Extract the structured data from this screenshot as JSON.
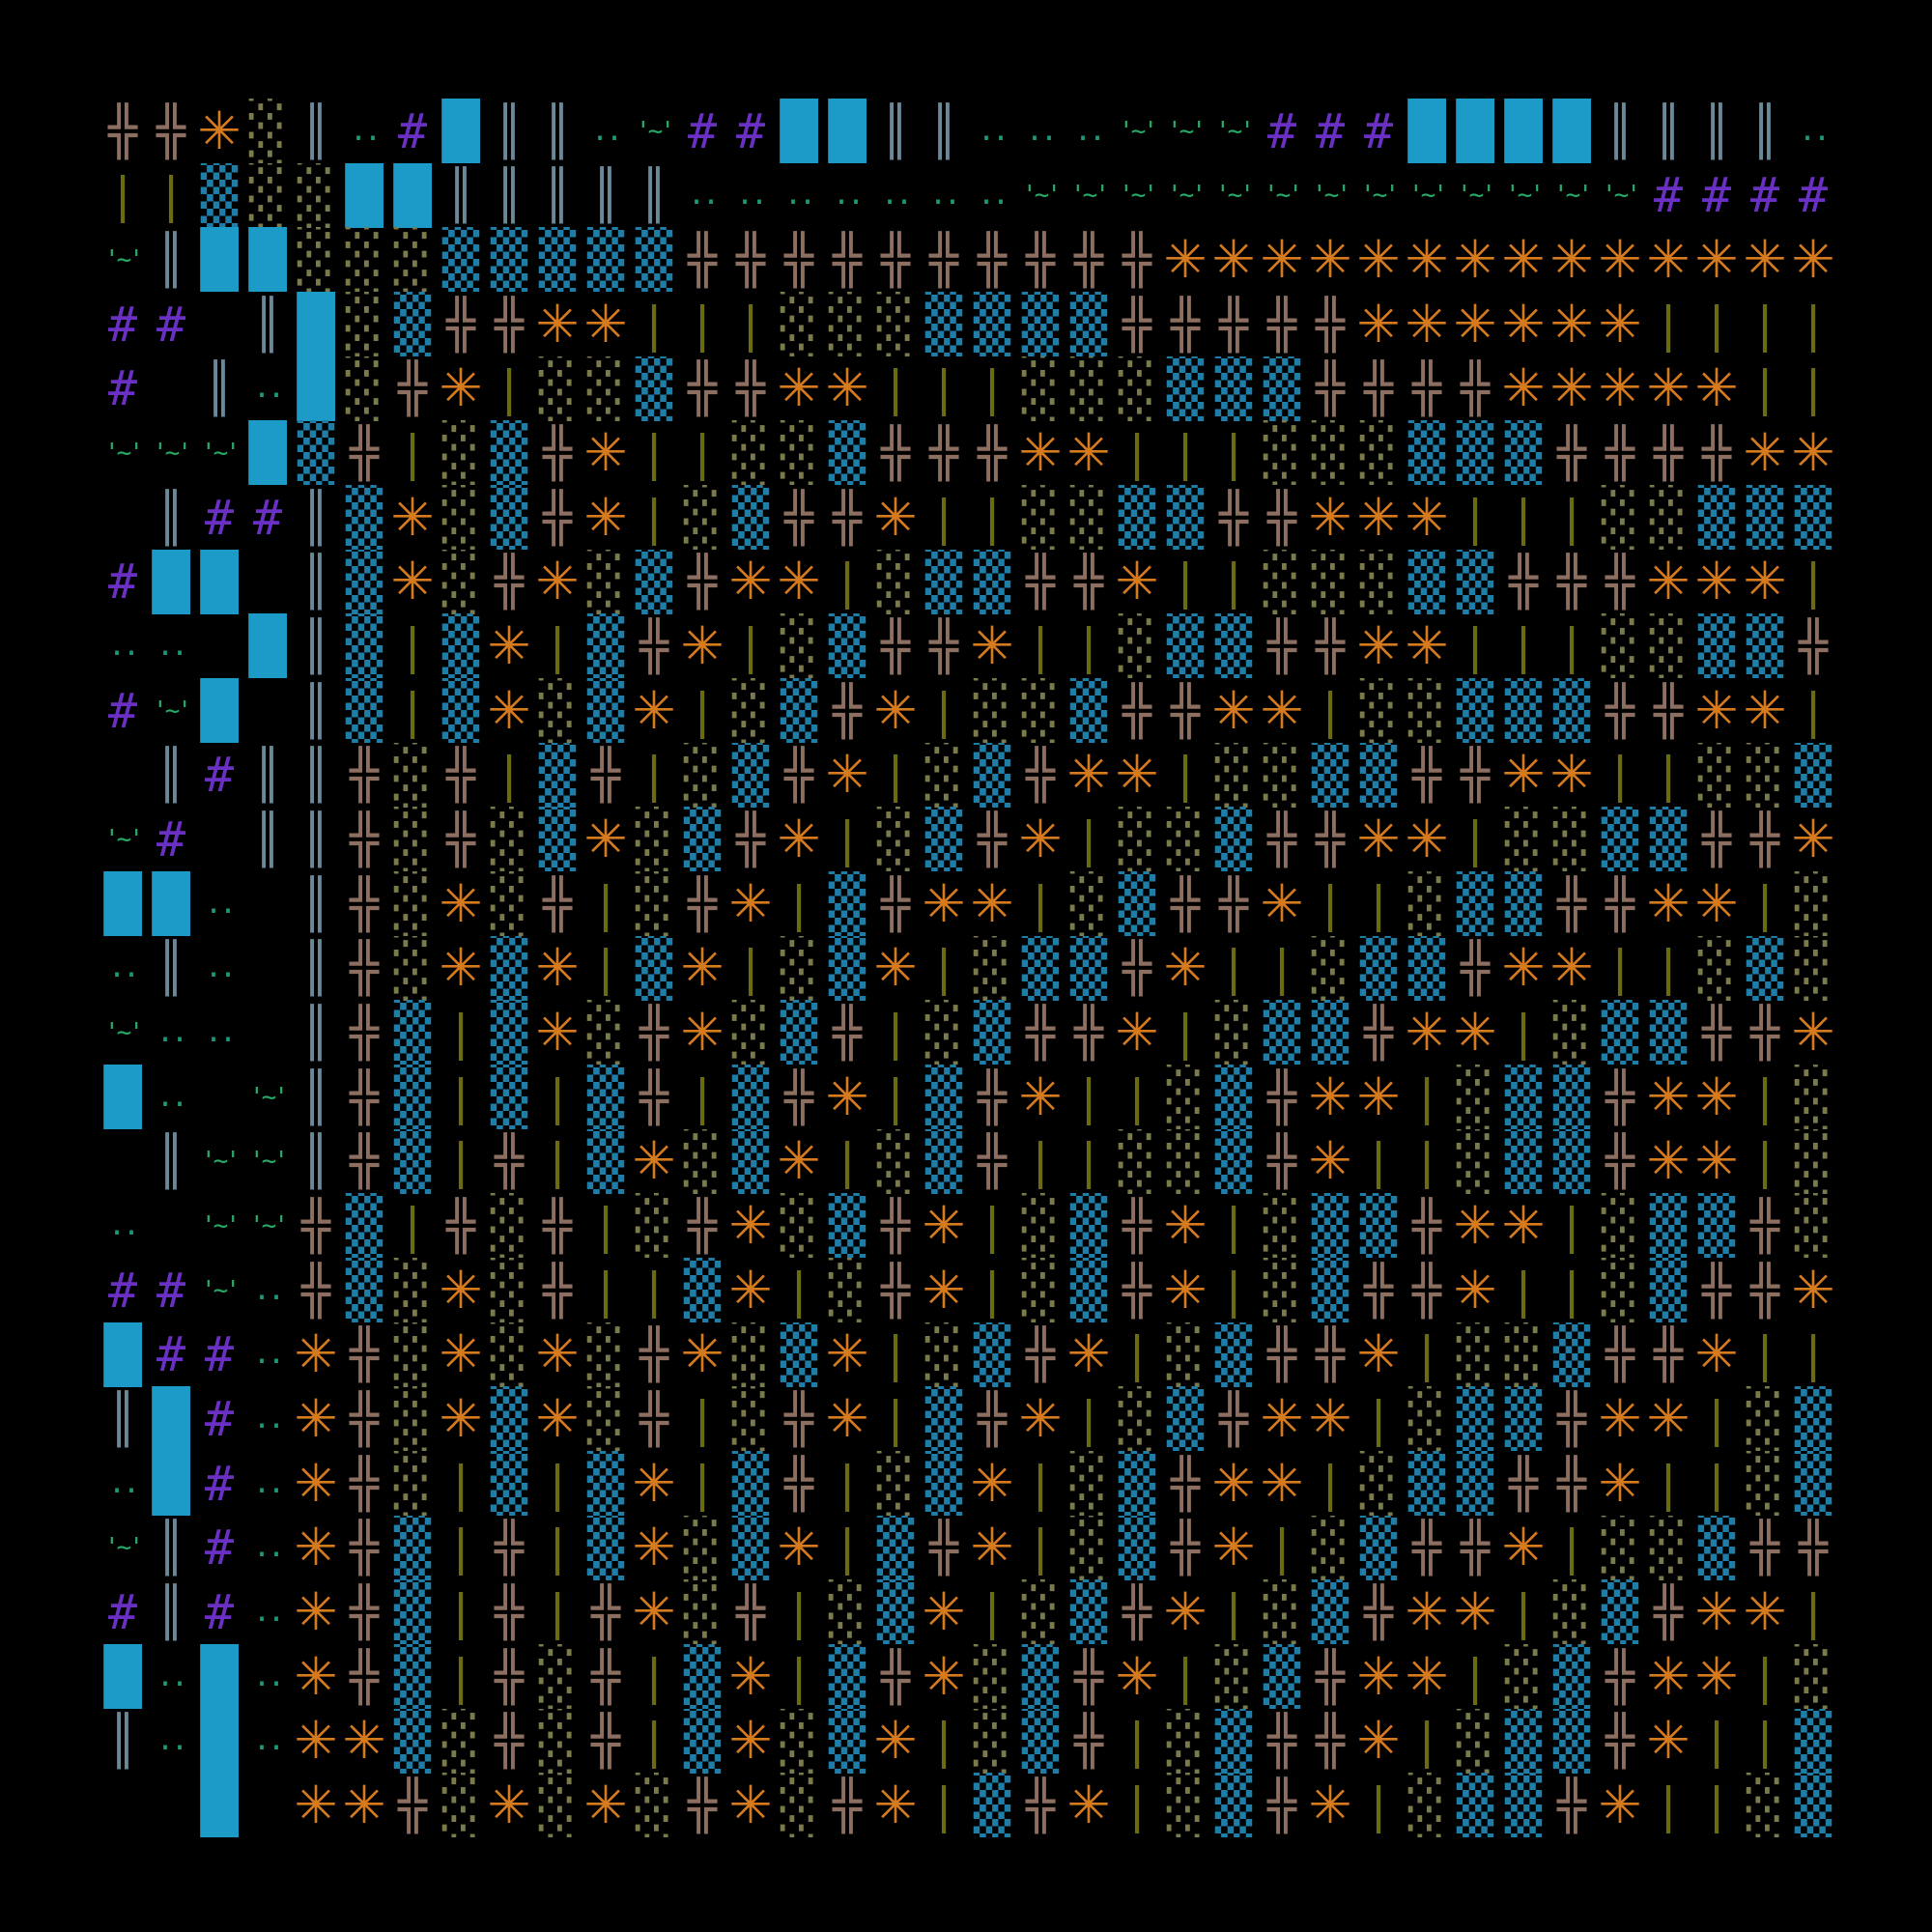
{
  "map": {
    "colors": {
      "╬": "#8c6f60",
      "✳": "#d67a1e",
      "░": "#7a7a4a",
      "▒": "#1e7ea8",
      "█": "#1c9bc8",
      "║": "#6a8898",
      "|": "#6b6b12",
      "..": "#1a9a7a",
      "'~'": "#2aaa68",
      "#": "#6a30c4"
    },
    "rows": [
      [
        "╬",
        "╬",
        "✳",
        "░",
        "║",
        "..",
        "#",
        "█",
        "║",
        "║",
        "..",
        "'~'",
        "#",
        "#",
        "█",
        "█",
        "║",
        "║",
        "..",
        "..",
        "..",
        "'~'",
        "'~'",
        "'~'",
        "#",
        "#",
        "#",
        "█",
        "█",
        "█",
        "█",
        "║",
        "║",
        "║",
        "║",
        ".."
      ],
      [
        "|",
        "|",
        "▒",
        "░",
        "░",
        "█",
        "█",
        "║",
        "║",
        "║",
        "║",
        "║",
        "..",
        "..",
        "..",
        "..",
        "..",
        "..",
        "..",
        "'~'",
        "'~'",
        "'~'",
        "'~'",
        "'~'",
        "'~'",
        "'~'",
        "'~'",
        "'~'",
        "'~'",
        "'~'",
        "'~'",
        "'~'",
        "#",
        "#",
        "#",
        "#"
      ],
      [
        "'~'",
        "║",
        "█",
        "█",
        "░",
        "░",
        "░",
        "▒",
        "▒",
        "▒",
        "▒",
        "▒",
        "╬",
        "╬",
        "╬",
        "╬",
        "╬",
        "╬",
        "╬",
        "╬",
        "╬",
        "╬",
        "✳",
        "✳",
        "✳",
        "✳",
        "✳",
        "✳",
        "✳",
        "✳",
        "✳",
        "✳",
        "✳",
        "✳",
        "✳",
        "✳"
      ],
      [
        "#",
        "#",
        null,
        "║",
        "█",
        "░",
        "▒",
        "╬",
        "╬",
        "✳",
        "✳",
        "|",
        "|",
        "|",
        "░",
        "░",
        "░",
        "▒",
        "▒",
        "▒",
        "▒",
        "╬",
        "╬",
        "╬",
        "╬",
        "╬",
        "✳",
        "✳",
        "✳",
        "✳",
        "✳",
        "✳",
        "|",
        "|",
        "|",
        "|"
      ],
      [
        "#",
        null,
        "║",
        "..",
        "█",
        "░",
        "╬",
        "✳",
        "|",
        "░",
        "░",
        "▒",
        "╬",
        "╬",
        "✳",
        "✳",
        "|",
        "|",
        "|",
        "░",
        "░",
        "░",
        "▒",
        "▒",
        "▒",
        "╬",
        "╬",
        "╬",
        "╬",
        "✳",
        "✳",
        "✳",
        "✳",
        "✳",
        "|",
        "|"
      ],
      [
        "'~'",
        "'~'",
        "'~'",
        "█",
        "▒",
        "╬",
        "|",
        "░",
        "▒",
        "╬",
        "✳",
        "|",
        "|",
        "░",
        "░",
        "▒",
        "╬",
        "╬",
        "╬",
        "✳",
        "✳",
        "|",
        "|",
        "|",
        "░",
        "░",
        "░",
        "▒",
        "▒",
        "▒",
        "╬",
        "╬",
        "╬",
        "╬",
        "✳",
        "✳"
      ],
      [
        null,
        "║",
        "#",
        "#",
        "║",
        "▒",
        "✳",
        "░",
        "▒",
        "╬",
        "✳",
        "|",
        "░",
        "▒",
        "╬",
        "╬",
        "✳",
        "|",
        "|",
        "░",
        "░",
        "▒",
        "▒",
        "╬",
        "╬",
        "✳",
        "✳",
        "✳",
        "|",
        "|",
        "|",
        "░",
        "░",
        "▒",
        "▒",
        "▒"
      ],
      [
        "#",
        "█",
        "█",
        null,
        "║",
        "▒",
        "✳",
        "░",
        "╬",
        "✳",
        "░",
        "▒",
        "╬",
        "✳",
        "✳",
        "|",
        "░",
        "▒",
        "▒",
        "╬",
        "╬",
        "✳",
        "|",
        "|",
        "░",
        "░",
        "░",
        "▒",
        "▒",
        "╬",
        "╬",
        "╬",
        "✳",
        "✳",
        "✳",
        "|"
      ],
      [
        "..",
        "..",
        null,
        "█",
        "║",
        "▒",
        "|",
        "▒",
        "✳",
        "|",
        "▒",
        "╬",
        "✳",
        "|",
        "░",
        "▒",
        "╬",
        "╬",
        "✳",
        "|",
        "|",
        "░",
        "▒",
        "▒",
        "╬",
        "╬",
        "✳",
        "✳",
        "|",
        "|",
        "|",
        "░",
        "░",
        "▒",
        "▒",
        "╬"
      ],
      [
        "#",
        "'~'",
        "█",
        null,
        "║",
        "▒",
        "|",
        "▒",
        "✳",
        "░",
        "▒",
        "✳",
        "|",
        "░",
        "▒",
        "╬",
        "✳",
        "|",
        "░",
        "░",
        "▒",
        "╬",
        "╬",
        "✳",
        "✳",
        "|",
        "░",
        "░",
        "▒",
        "▒",
        "▒",
        "╬",
        "╬",
        "✳",
        "✳",
        "|"
      ],
      [
        null,
        "║",
        "#",
        "║",
        "║",
        "╬",
        "░",
        "╬",
        "|",
        "▒",
        "╬",
        "|",
        "░",
        "▒",
        "╬",
        "✳",
        "|",
        "░",
        "▒",
        "╬",
        "✳",
        "✳",
        "|",
        "░",
        "░",
        "▒",
        "▒",
        "╬",
        "╬",
        "✳",
        "✳",
        "|",
        "|",
        "░",
        "░",
        "▒"
      ],
      [
        "'~'",
        "#",
        null,
        "║",
        "║",
        "╬",
        "░",
        "╬",
        "░",
        "▒",
        "✳",
        "░",
        "▒",
        "╬",
        "✳",
        "|",
        "░",
        "▒",
        "╬",
        "✳",
        "|",
        "░",
        "░",
        "▒",
        "╬",
        "╬",
        "✳",
        "✳",
        "|",
        "░",
        "░",
        "▒",
        "▒",
        "╬",
        "╬",
        "✳"
      ],
      [
        "█",
        "█",
        "..",
        null,
        "║",
        "╬",
        "░",
        "✳",
        "░",
        "╬",
        "|",
        "░",
        "╬",
        "✳",
        "|",
        "▒",
        "╬",
        "✳",
        "✳",
        "|",
        "░",
        "▒",
        "╬",
        "╬",
        "✳",
        "|",
        "|",
        "░",
        "▒",
        "▒",
        "╬",
        "╬",
        "✳",
        "✳",
        "|",
        "░"
      ],
      [
        "..",
        "║",
        "..",
        null,
        "║",
        "╬",
        "░",
        "✳",
        "▒",
        "✳",
        "|",
        "▒",
        "✳",
        "|",
        "░",
        "▒",
        "✳",
        "|",
        "░",
        "▒",
        "▒",
        "╬",
        "✳",
        "|",
        "|",
        "░",
        "▒",
        "▒",
        "╬",
        "✳",
        "✳",
        "|",
        "|",
        "░",
        "▒",
        "░"
      ],
      [
        "'~'",
        "..",
        "..",
        null,
        "║",
        "╬",
        "▒",
        "|",
        "▒",
        "✳",
        "░",
        "╬",
        "✳",
        "░",
        "▒",
        "╬",
        "|",
        "░",
        "▒",
        "╬",
        "╬",
        "✳",
        "|",
        "░",
        "▒",
        "▒",
        "╬",
        "✳",
        "✳",
        "|",
        "░",
        "▒",
        "▒",
        "╬",
        "╬",
        "✳"
      ],
      [
        "█",
        "..",
        null,
        "'~'",
        "║",
        "╬",
        "▒",
        "|",
        "▒",
        "|",
        "▒",
        "╬",
        "|",
        "▒",
        "╬",
        "✳",
        "|",
        "▒",
        "╬",
        "✳",
        "|",
        "|",
        "░",
        "▒",
        "╬",
        "✳",
        "✳",
        "|",
        "░",
        "▒",
        "▒",
        "╬",
        "✳",
        "✳",
        "|",
        "░"
      ],
      [
        null,
        "║",
        "'~'",
        "'~'",
        "║",
        "╬",
        "▒",
        "|",
        "╬",
        "|",
        "▒",
        "✳",
        "░",
        "▒",
        "✳",
        "|",
        "░",
        "▒",
        "╬",
        "|",
        "|",
        "░",
        "░",
        "▒",
        "╬",
        "✳",
        "|",
        "|",
        "░",
        "▒",
        "▒",
        "╬",
        "✳",
        "✳",
        "|",
        "░"
      ],
      [
        "..",
        null,
        "'~'",
        "'~'",
        "╬",
        "▒",
        "|",
        "╬",
        "░",
        "╬",
        "|",
        "░",
        "╬",
        "✳",
        "░",
        "▒",
        "╬",
        "✳",
        "|",
        "░",
        "▒",
        "╬",
        "✳",
        "|",
        "░",
        "▒",
        "▒",
        "╬",
        "✳",
        "✳",
        "|",
        "░",
        "▒",
        "▒",
        "╬",
        "░"
      ],
      [
        "#",
        "#",
        "'~'",
        "..",
        "╬",
        "▒",
        "░",
        "✳",
        "░",
        "╬",
        "|",
        "|",
        "▒",
        "✳",
        "|",
        "░",
        "╬",
        "✳",
        "|",
        "░",
        "▒",
        "╬",
        "✳",
        "|",
        "░",
        "▒",
        "╬",
        "╬",
        "✳",
        "|",
        "|",
        "░",
        "▒",
        "╬",
        "╬",
        "✳"
      ],
      [
        "█",
        "#",
        "#",
        "..",
        "✳",
        "╬",
        "░",
        "✳",
        "░",
        "✳",
        "░",
        "╬",
        "✳",
        "░",
        "▒",
        "✳",
        "|",
        "░",
        "▒",
        "╬",
        "✳",
        "|",
        "░",
        "▒",
        "╬",
        "╬",
        "✳",
        "|",
        "░",
        "░",
        "▒",
        "╬",
        "╬",
        "✳",
        "|",
        "|"
      ],
      [
        "║",
        "█",
        "#",
        "..",
        "✳",
        "╬",
        "░",
        "✳",
        "▒",
        "✳",
        "░",
        "╬",
        "|",
        "░",
        "╬",
        "✳",
        "|",
        "▒",
        "╬",
        "✳",
        "|",
        "░",
        "▒",
        "╬",
        "✳",
        "✳",
        "|",
        "░",
        "▒",
        "▒",
        "╬",
        "✳",
        "✳",
        "|",
        "░",
        "▒"
      ],
      [
        "..",
        "█",
        "#",
        "..",
        "✳",
        "╬",
        "░",
        "|",
        "▒",
        "|",
        "▒",
        "✳",
        "|",
        "▒",
        "╬",
        "|",
        "░",
        "▒",
        "✳",
        "|",
        "░",
        "▒",
        "╬",
        "✳",
        "✳",
        "|",
        "░",
        "▒",
        "▒",
        "╬",
        "╬",
        "✳",
        "|",
        "|",
        "░",
        "▒"
      ],
      [
        "'~'",
        "║",
        "#",
        "..",
        "✳",
        "╬",
        "▒",
        "|",
        "╬",
        "|",
        "▒",
        "✳",
        "░",
        "▒",
        "✳",
        "|",
        "▒",
        "╬",
        "✳",
        "|",
        "░",
        "▒",
        "╬",
        "✳",
        "|",
        "░",
        "▒",
        "╬",
        "╬",
        "✳",
        "|",
        "░",
        "░",
        "▒",
        "╬",
        "╬"
      ],
      [
        "#",
        "║",
        "#",
        "..",
        "✳",
        "╬",
        "▒",
        "|",
        "╬",
        "|",
        "╬",
        "✳",
        "░",
        "╬",
        "|",
        "░",
        "▒",
        "✳",
        "|",
        "░",
        "▒",
        "╬",
        "✳",
        "|",
        "░",
        "▒",
        "╬",
        "✳",
        "✳",
        "|",
        "░",
        "▒",
        "╬",
        "✳",
        "✳",
        "|"
      ],
      [
        "█",
        "..",
        "█",
        "..",
        "✳",
        "╬",
        "▒",
        "|",
        "╬",
        "░",
        "╬",
        "|",
        "▒",
        "✳",
        "|",
        "▒",
        "╬",
        "✳",
        "░",
        "▒",
        "╬",
        "✳",
        "|",
        "░",
        "▒",
        "╬",
        "✳",
        "✳",
        "|",
        "░",
        "▒",
        "╬",
        "✳",
        "✳",
        "|",
        "░"
      ],
      [
        "║",
        "..",
        "█",
        "..",
        "✳",
        "✳",
        "▒",
        "░",
        "╬",
        "░",
        "╬",
        "|",
        "▒",
        "✳",
        "░",
        "▒",
        "✳",
        "|",
        "░",
        "▒",
        "╬",
        "|",
        "░",
        "▒",
        "╬",
        "╬",
        "✳",
        "|",
        "░",
        "▒",
        "▒",
        "╬",
        "✳",
        "|",
        "|",
        "▒"
      ],
      [
        null,
        null,
        "█",
        null,
        "✳",
        "✳",
        "╬",
        "░",
        "✳",
        "░",
        "✳",
        "░",
        "╬",
        "✳",
        "░",
        "╬",
        "✳",
        "|",
        "▒",
        "╬",
        "✳",
        "|",
        "░",
        "▒",
        "╬",
        "✳",
        "|",
        "░",
        "▒",
        "▒",
        "╬",
        "✳",
        "|",
        "|",
        "░",
        "▒"
      ]
    ]
  }
}
